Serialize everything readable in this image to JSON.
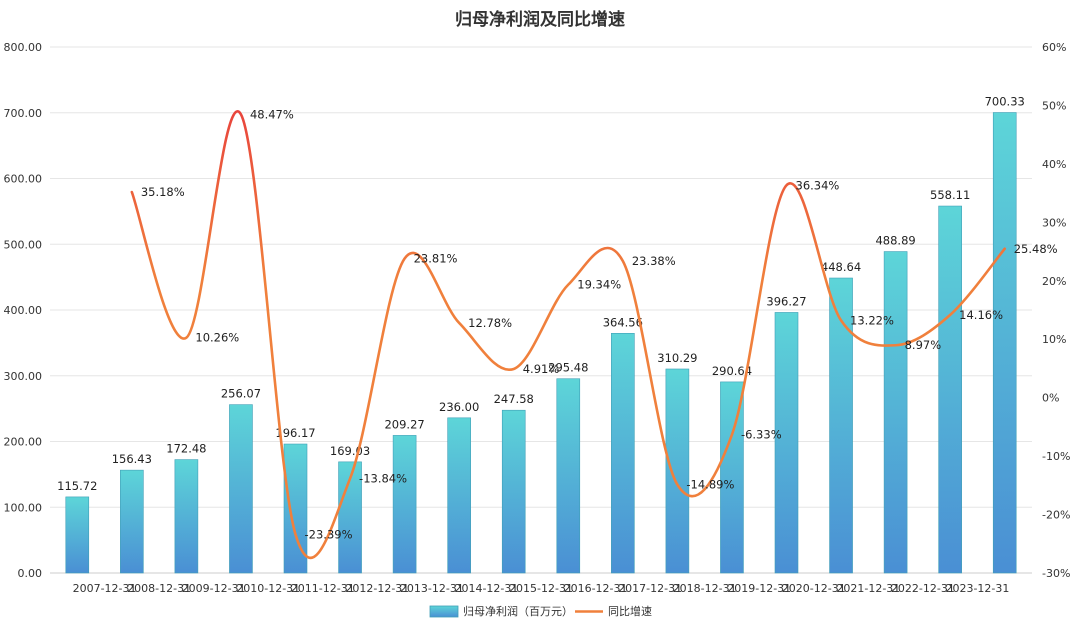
{
  "chart_data": {
    "type": "bar",
    "title": "归母净利润及同比增速",
    "categories": [
      "",
      "2007-12-31",
      "2008-12-31",
      "2009-12-31",
      "2010-12-31",
      "2011-12-31",
      "2012-12-31",
      "2013-12-31",
      "2014-12-31",
      "2015-12-31",
      "2016-12-31",
      "2017-12-31",
      "2018-12-31",
      "2019-12-31",
      "2020-12-31",
      "2021-12-31",
      "2022-12-31",
      "2023-12-31"
    ],
    "series": [
      {
        "name": "归母净利润（百万元）",
        "type": "bar",
        "axis": "left",
        "values": [
          115.72,
          156.43,
          172.48,
          256.07,
          196.17,
          169.03,
          209.27,
          236.0,
          247.58,
          295.48,
          364.56,
          310.29,
          290.64,
          396.27,
          448.64,
          488.89,
          558.11,
          700.33
        ],
        "labels": [
          "115.72",
          "156.43",
          "172.48",
          "256.07",
          "196.17",
          "169.03",
          "209.27",
          "236.00",
          "247.58",
          "295.48",
          "364.56",
          "310.29",
          "290.64",
          "396.27",
          "448.64",
          "488.89",
          "558.11",
          "700.33"
        ]
      },
      {
        "name": "同比增速",
        "type": "line",
        "axis": "right",
        "values": [
          null,
          35.18,
          10.26,
          48.47,
          -23.39,
          -13.84,
          23.81,
          12.78,
          4.91,
          19.34,
          23.38,
          -14.89,
          -6.33,
          36.34,
          13.22,
          8.97,
          14.16,
          25.48
        ],
        "labels": [
          "",
          "35.18%",
          "10.26%",
          "48.47%",
          "-23.39%",
          "-13.84%",
          "23.81%",
          "12.78%",
          "4.91%",
          "19.34%",
          "23.38%",
          "-14.89%",
          "-6.33%",
          "36.34%",
          "13.22%",
          "8.97%",
          "14.16%",
          "25.48%"
        ]
      }
    ],
    "y_left": {
      "range": [
        0,
        800
      ],
      "ticks": [
        "0.00",
        "100.00",
        "200.00",
        "300.00",
        "400.00",
        "500.00",
        "600.00",
        "700.00",
        "800.00"
      ]
    },
    "y_right": {
      "range": [
        -30,
        60
      ],
      "ticks": [
        "-30%",
        "-20%",
        "-10%",
        "0%",
        "10%",
        "20%",
        "30%",
        "40%",
        "50%",
        "60%"
      ]
    },
    "grid": true,
    "legend": "bottom-center",
    "colors": {
      "bar_top": "#5dd5d8",
      "bar_bottom": "#4a8fd4",
      "bar_edge": "#3f9fb6",
      "line": "#f0803c",
      "line_peak": "#e8413c",
      "grid": "#e6e6e6"
    }
  }
}
